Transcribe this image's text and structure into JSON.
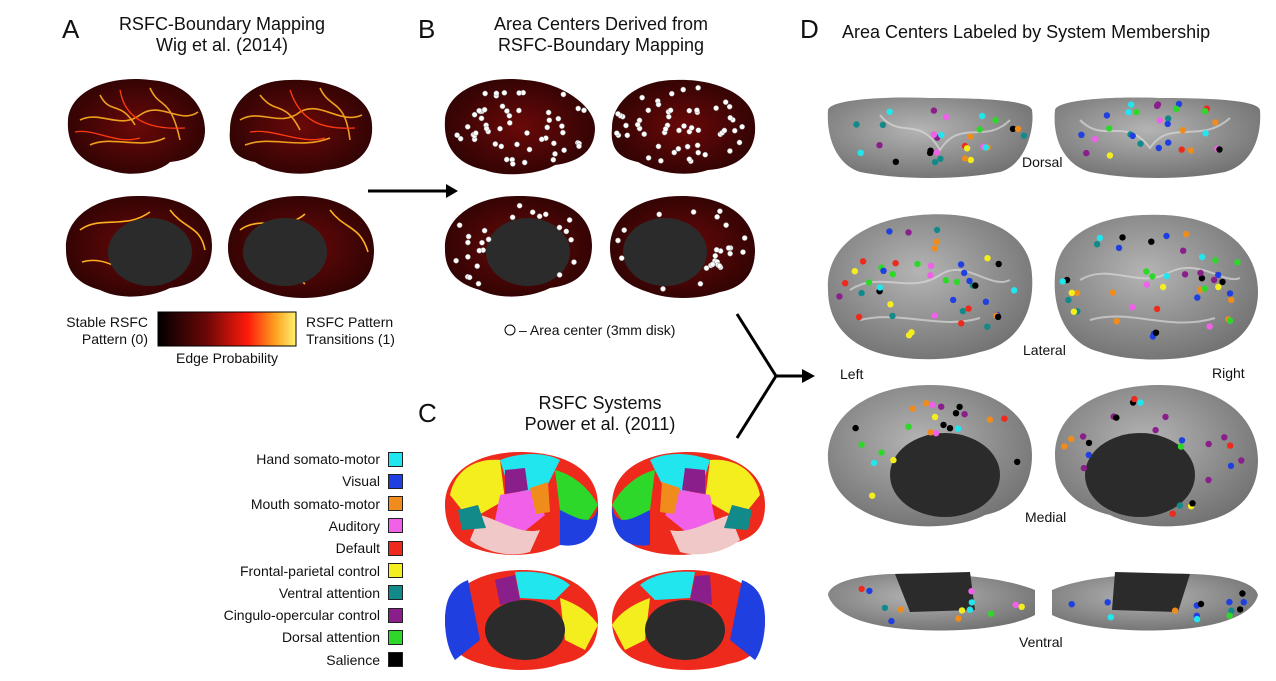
{
  "panelA": {
    "letter": "A",
    "title_line1": "RSFC-Boundary Mapping",
    "title_line2": "Wig et al. (2014)",
    "colorbar_left_line1": "Stable RSFC",
    "colorbar_left_line2": "Pattern (0)",
    "colorbar_right_line1": "RSFC Pattern",
    "colorbar_right_line2": "Transitions (1)",
    "colorbar_label": "Edge Probability"
  },
  "panelB": {
    "letter": "B",
    "title_line1": "Area Centers Derived from",
    "title_line2": "RSFC-Boundary Mapping",
    "legend_text": "– Area center (3mm disk)"
  },
  "panelC": {
    "letter": "C",
    "title_line1": "RSFC Systems",
    "title_line2": "Power et al. (2011)",
    "systems": [
      {
        "label": "Hand somato-motor",
        "color": "#22e6ee"
      },
      {
        "label": "Visual",
        "color": "#1f3fe0"
      },
      {
        "label": "Mouth somato-motor",
        "color": "#f08c1c"
      },
      {
        "label": "Auditory",
        "color": "#f060e8"
      },
      {
        "label": "Default",
        "color": "#ee2a1c"
      },
      {
        "label": "Frontal-parietal control",
        "color": "#f4ee1e"
      },
      {
        "label": "Ventral attention",
        "color": "#138a8a"
      },
      {
        "label": "Cingulo-opercular control",
        "color": "#8a1f8c"
      },
      {
        "label": "Dorsal attention",
        "color": "#2ed82a"
      },
      {
        "label": "Salience",
        "color": "#000000"
      }
    ]
  },
  "panelD": {
    "letter": "D",
    "title": "Area Centers Labeled by System Membership",
    "view_dorsal": "Dorsal",
    "view_lateral": "Lateral",
    "view_medial": "Medial",
    "view_ventral": "Ventral",
    "side_left": "Left",
    "side_right": "Right"
  },
  "colors": {
    "heat_dark": "#2a0505",
    "heat_mid": "#c81010",
    "heat_bright": "#ffe84a",
    "brain_gray": "#8c8c8c",
    "brain_core": "#2b2b2b"
  }
}
